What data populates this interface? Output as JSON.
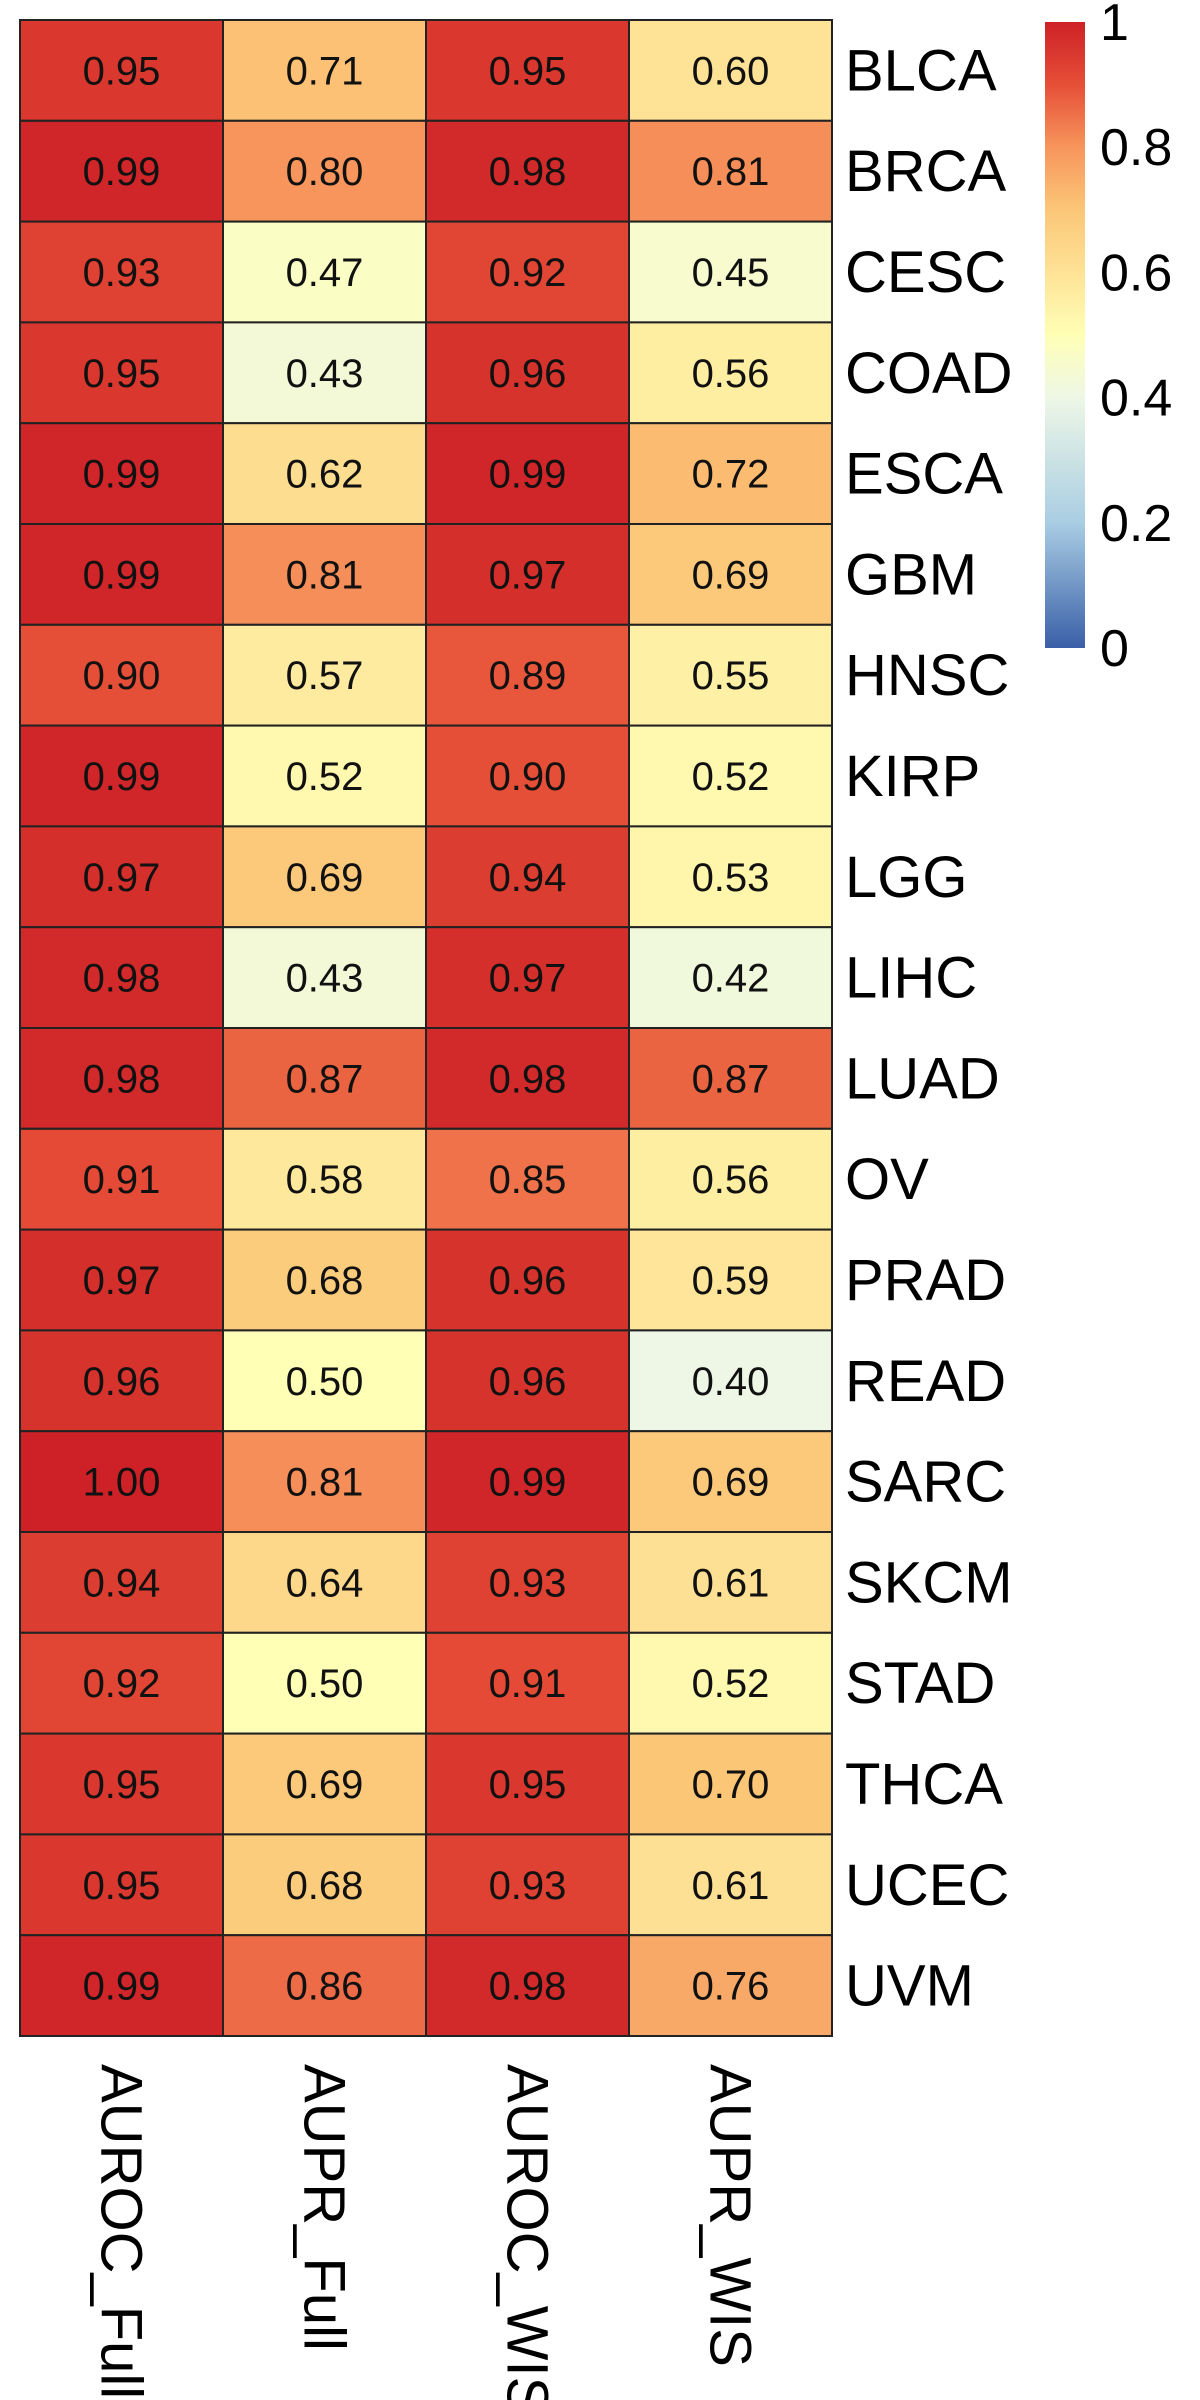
{
  "chart_data": {
    "type": "heatmap",
    "title": "",
    "xlabel": "",
    "ylabel": "",
    "columns": [
      "AUROC_Full",
      "AUPR_Full",
      "AUROC_WIS",
      "AUPR_WIS"
    ],
    "rows": [
      "BLCA",
      "BRCA",
      "CESC",
      "COAD",
      "ESCA",
      "GBM",
      "HNSC",
      "KIRP",
      "LGG",
      "LIHC",
      "LUAD",
      "OV",
      "PRAD",
      "READ",
      "SARC",
      "SKCM",
      "STAD",
      "THCA",
      "UCEC",
      "UVM"
    ],
    "values": [
      [
        0.95,
        0.71,
        0.95,
        0.6
      ],
      [
        0.99,
        0.8,
        0.98,
        0.81
      ],
      [
        0.93,
        0.47,
        0.92,
        0.45
      ],
      [
        0.95,
        0.43,
        0.96,
        0.56
      ],
      [
        0.99,
        0.62,
        0.99,
        0.72
      ],
      [
        0.99,
        0.81,
        0.97,
        0.69
      ],
      [
        0.9,
        0.57,
        0.89,
        0.55
      ],
      [
        0.99,
        0.52,
        0.9,
        0.52
      ],
      [
        0.97,
        0.69,
        0.94,
        0.53
      ],
      [
        0.98,
        0.43,
        0.97,
        0.42
      ],
      [
        0.98,
        0.87,
        0.98,
        0.87
      ],
      [
        0.91,
        0.58,
        0.85,
        0.56
      ],
      [
        0.97,
        0.68,
        0.96,
        0.59
      ],
      [
        0.96,
        0.5,
        0.96,
        0.4
      ],
      [
        1.0,
        0.81,
        0.99,
        0.69
      ],
      [
        0.94,
        0.64,
        0.93,
        0.61
      ],
      [
        0.92,
        0.5,
        0.91,
        0.52
      ],
      [
        0.95,
        0.69,
        0.95,
        0.7
      ],
      [
        0.95,
        0.68,
        0.93,
        0.61
      ],
      [
        0.99,
        0.86,
        0.98,
        0.76
      ]
    ],
    "color_scale": {
      "range": [
        0,
        1
      ],
      "ticks": [
        "0",
        "0.2",
        "0.4",
        "0.6",
        "0.8",
        "1"
      ],
      "stops": [
        {
          "value": 0.0,
          "color": "#3a5fa8"
        },
        {
          "value": 0.2,
          "color": "#a9cde3"
        },
        {
          "value": 0.4,
          "color": "#eef7e6"
        },
        {
          "value": 0.5,
          "color": "#ffffb5"
        },
        {
          "value": 0.7,
          "color": "#fcc677"
        },
        {
          "value": 0.8,
          "color": "#f7955c"
        },
        {
          "value": 0.9,
          "color": "#e64f37"
        },
        {
          "value": 1.0,
          "color": "#cd2127"
        }
      ]
    },
    "legend_placement": "top-right",
    "cell_border_color": "#222222",
    "grid": false
  }
}
